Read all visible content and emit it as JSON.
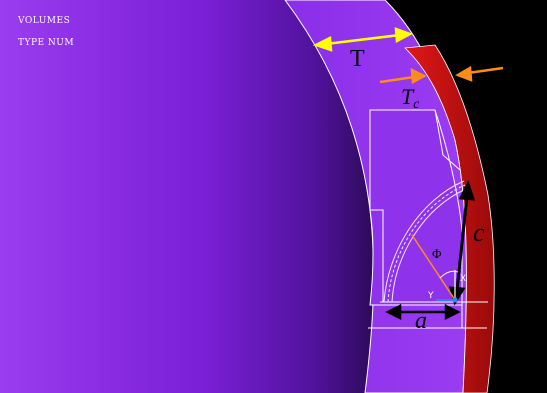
{
  "legend": {
    "line1": "VOLUMES",
    "line2": "TYPE NUM"
  },
  "labels": {
    "coating_thickness": "T",
    "tc_base": "T",
    "tc_subscript": "c",
    "crack_depth": "c",
    "crack_half_length": "a",
    "angle": "Φ",
    "axis_x": "X",
    "axis_y": "Y"
  },
  "colors": {
    "background": "#000000",
    "substrate": "#7a1fd6",
    "substrate_dark": "#3a0c6e",
    "substrate_light": "#9a3cf0",
    "coating": "#cc1212",
    "outline": "#ffffff",
    "dimension_arrow": "#ffff00",
    "tc_arrows": "#ff8c1a",
    "crack_arrow": "#000000",
    "axis_x": "#ffffff",
    "axis_y": "#1f8fff"
  }
}
